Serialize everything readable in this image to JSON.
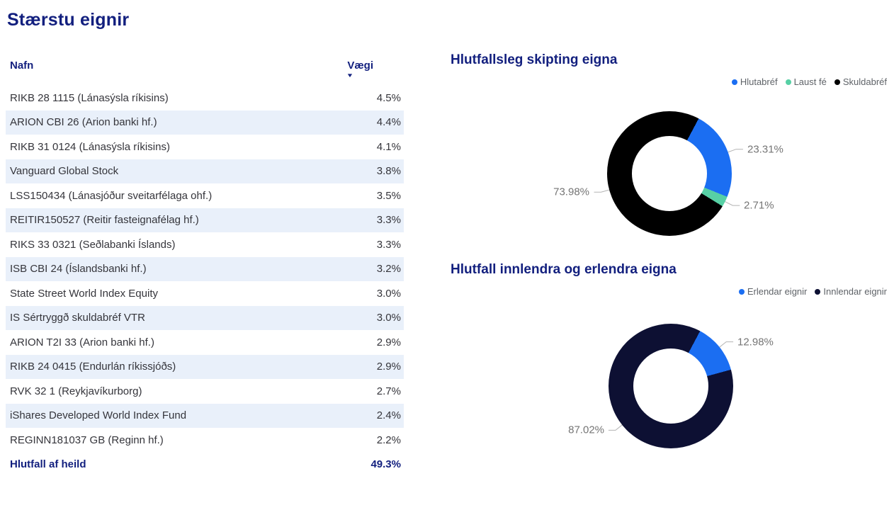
{
  "page": {
    "title": "Stærstu eignir"
  },
  "table": {
    "columns": {
      "name": "Nafn",
      "weight": "Vægi"
    },
    "sort_icon": "▼",
    "rows": [
      {
        "name": "RIKB 28 1115 (Lánasýsla ríkisins)",
        "value": "4.5%"
      },
      {
        "name": "ARION CBI 26 (Arion banki hf.)",
        "value": "4.4%"
      },
      {
        "name": "RIKB 31 0124 (Lánasýsla ríkisins)",
        "value": "4.1%"
      },
      {
        "name": "Vanguard Global Stock",
        "value": "3.8%"
      },
      {
        "name": "LSS150434 (Lánasjóður sveitarfélaga ohf.)",
        "value": "3.5%"
      },
      {
        "name": "REITIR150527 (Reitir fasteignafélag hf.)",
        "value": "3.3%"
      },
      {
        "name": "RIKS 33 0321 (Seðlabanki Íslands)",
        "value": "3.3%"
      },
      {
        "name": "ISB CBI 24 (Íslandsbanki hf.)",
        "value": "3.2%"
      },
      {
        "name": "State Street World Index Equity",
        "value": "3.0%"
      },
      {
        "name": "IS Sértryggð skuldabréf VTR",
        "value": "3.0%"
      },
      {
        "name": "ARION T2I 33 (Arion banki hf.)",
        "value": "2.9%"
      },
      {
        "name": "RIKB 24 0415 (Endurlán ríkissjóðs)",
        "value": "2.9%"
      },
      {
        "name": "RVK 32 1 (Reykjavíkurborg)",
        "value": "2.7%"
      },
      {
        "name": "iShares Developed World Index Fund",
        "value": "2.4%"
      },
      {
        "name": "REGINN181037 GB (Reginn hf.)",
        "value": "2.2%"
      }
    ],
    "total": {
      "name": "Hlutfall af heild",
      "value": "49.3%"
    }
  },
  "chart_data": [
    {
      "type": "pie",
      "donut": true,
      "title": "Hlutfallsleg skipting eigna",
      "legend_position": "top-right",
      "start_angle_deg": 28,
      "series": [
        {
          "name": "Hlutabréf",
          "value": 23.31,
          "label": "23.31%",
          "color": "#1b6ef2"
        },
        {
          "name": "Laust fé",
          "value": 2.71,
          "label": "2.71%",
          "color": "#57d0a5"
        },
        {
          "name": "Skuldabréf",
          "value": 73.98,
          "label": "73.98%",
          "color": "#000000"
        }
      ]
    },
    {
      "type": "pie",
      "donut": true,
      "title": "Hlutfall innlendra og erlendra eigna",
      "legend_position": "top-right",
      "start_angle_deg": 28,
      "series": [
        {
          "name": "Erlendar eignir",
          "value": 12.98,
          "label": "12.98%",
          "color": "#1b6ef2"
        },
        {
          "name": "Innlendar eignir",
          "value": 87.02,
          "label": "87.02%",
          "color": "#0d1033"
        }
      ]
    }
  ],
  "colors": {
    "accent_navy": "#121f7e",
    "row_band": "#e9f0fa",
    "legend_text": "#5f6368",
    "slice_label_gray": "#757575",
    "leader_line": "#b3b3b3"
  }
}
